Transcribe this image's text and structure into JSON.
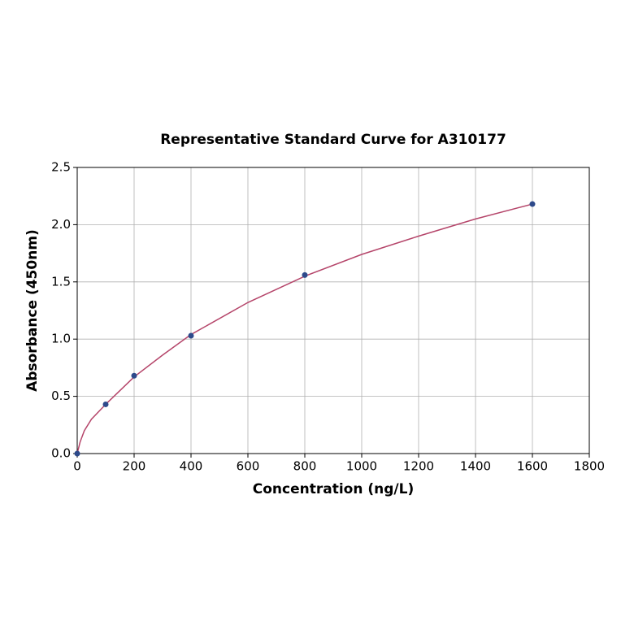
{
  "chart_data": {
    "type": "scatter",
    "title": "Representative Standard Curve for A310177",
    "x_label": "Concentration (ng/L)",
    "y_label": "Absorbance (450nm)",
    "xlim": [
      0,
      1800
    ],
    "ylim": [
      0,
      2.5
    ],
    "xticks": [
      0,
      200,
      400,
      600,
      800,
      1000,
      1200,
      1400,
      1600,
      1800
    ],
    "yticks": [
      {
        "value": 0,
        "label": "0.0"
      },
      0.5,
      {
        "value": 1,
        "label": "1.0"
      },
      1.5,
      {
        "value": 2,
        "label": "2.0"
      },
      2.5
    ],
    "grid": true,
    "series": [
      {
        "color": "#2e4a8b",
        "x": [
          0,
          100,
          200,
          400,
          800,
          1600
        ],
        "values": [
          0,
          0.43,
          0.68,
          1.03,
          1.56,
          2.18
        ]
      }
    ],
    "fit_curve": {
      "color": "#b5456a",
      "x": [
        0,
        10,
        25,
        50,
        100,
        200,
        300,
        400,
        600,
        800,
        1000,
        1200,
        1400,
        1600
      ],
      "values": [
        0,
        0.1,
        0.2,
        0.3,
        0.43,
        0.67,
        0.86,
        1.04,
        1.32,
        1.55,
        1.74,
        1.9,
        2.05,
        2.18
      ]
    }
  }
}
